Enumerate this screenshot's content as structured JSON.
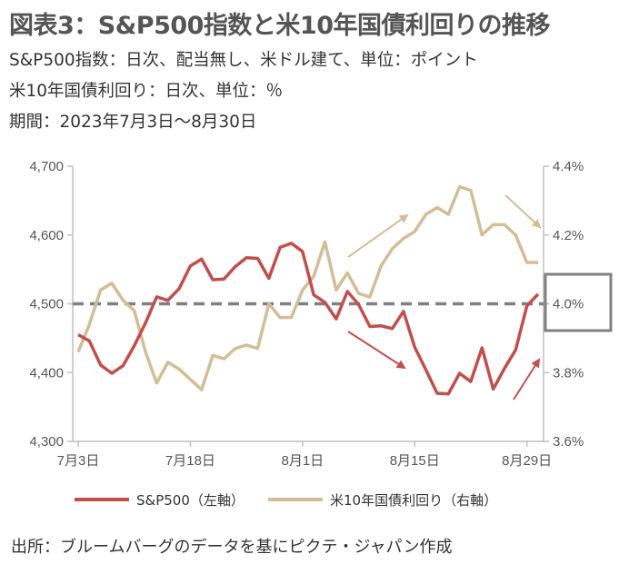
{
  "title": "図表3：S&P500指数と米10年国債利回りの推移",
  "subtitles": [
    "S&P500指数：日次、配当無し、米ドル建て、単位：ポイント",
    "米10年国債利回り：日次、単位：％",
    "期間：2023年7月3日～8月30日"
  ],
  "source": "出所：ブルームバーグのデータを基にピクテ・ジャパン作成",
  "colors": {
    "sp500": "#c0504d",
    "yield": "#d2bd98",
    "reference_line": "#7f7f7f",
    "axis": "#bfbfbf",
    "highlight_box": "#808080"
  },
  "chart_data": {
    "type": "line",
    "x_tick_labels": [
      "7月3日",
      "7月18日",
      "8月1日",
      "8月15日",
      "8月29日"
    ],
    "left_axis": {
      "range": [
        4300,
        4700
      ],
      "ticks": [
        "4,300",
        "4,400",
        "4,500",
        "4,600",
        "4,700"
      ]
    },
    "right_axis": {
      "range": [
        3.6,
        4.4
      ],
      "ticks": [
        "3.6%",
        "3.8%",
        "4.0%",
        "4.2%",
        "4.4%"
      ]
    },
    "x": [
      "2023-07-03",
      "2023-07-05",
      "2023-07-06",
      "2023-07-07",
      "2023-07-10",
      "2023-07-11",
      "2023-07-12",
      "2023-07-13",
      "2023-07-14",
      "2023-07-17",
      "2023-07-18",
      "2023-07-19",
      "2023-07-20",
      "2023-07-21",
      "2023-07-24",
      "2023-07-25",
      "2023-07-26",
      "2023-07-27",
      "2023-07-28",
      "2023-07-31",
      "2023-08-01",
      "2023-08-02",
      "2023-08-03",
      "2023-08-04",
      "2023-08-07",
      "2023-08-08",
      "2023-08-09",
      "2023-08-10",
      "2023-08-11",
      "2023-08-14",
      "2023-08-15",
      "2023-08-16",
      "2023-08-17",
      "2023-08-18",
      "2023-08-21",
      "2023-08-22",
      "2023-08-23",
      "2023-08-24",
      "2023-08-25",
      "2023-08-28",
      "2023-08-29",
      "2023-08-30"
    ],
    "series": [
      {
        "name": "S&P500（左軸）",
        "axis": "left",
        "values": [
          4455,
          4446,
          4411,
          4399,
          4410,
          4439,
          4472,
          4510,
          4505,
          4522,
          4555,
          4565,
          4535,
          4536,
          4554,
          4567,
          4566,
          4537,
          4582,
          4588,
          4576,
          4513,
          4502,
          4478,
          4518,
          4499,
          4467,
          4468,
          4464,
          4489,
          4437,
          4404,
          4370,
          4369,
          4399,
          4387,
          4436,
          4376,
          4406,
          4433,
          4497,
          4514
        ]
      },
      {
        "name": "米10年国債利回り（右軸）",
        "axis": "right",
        "values": [
          3.86,
          3.94,
          4.04,
          4.06,
          4.01,
          3.98,
          3.86,
          3.77,
          3.83,
          3.81,
          3.78,
          3.75,
          3.85,
          3.84,
          3.87,
          3.88,
          3.87,
          4.0,
          3.96,
          3.96,
          4.04,
          4.08,
          4.18,
          4.04,
          4.09,
          4.03,
          4.02,
          4.11,
          4.16,
          4.19,
          4.21,
          4.26,
          4.28,
          4.26,
          4.34,
          4.33,
          4.2,
          4.23,
          4.23,
          4.2,
          4.12,
          4.12
        ]
      }
    ],
    "reference_line": {
      "axis": "right",
      "value": 4.0,
      "style": "dashed"
    },
    "legend": {
      "position": "bottom"
    },
    "grid": false
  }
}
